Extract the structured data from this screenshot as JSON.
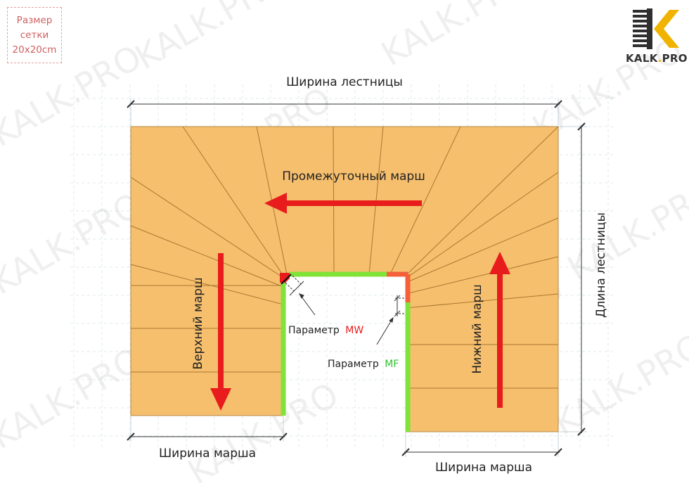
{
  "grid_size": {
    "line1": "Размер",
    "line2": "сетки",
    "line3": "20x20cm"
  },
  "logo": {
    "main": "KALK",
    "dot": ".",
    "suffix": "PRO"
  },
  "watermark": "KALK.PRO",
  "labels": {
    "stair_width": "Ширина лестницы",
    "stair_length": "Длина лестницы",
    "intermediate_flight": "Промежуточный марш",
    "upper_flight": "Верхний марш",
    "lower_flight": "Нижний марш",
    "flight_width_left": "Ширина марша",
    "flight_width_right": "Ширина марша",
    "param_word_mw": "Параметр",
    "param_code_mw": "MW",
    "param_word_mf": "Параметр",
    "param_code_mf": "MF"
  },
  "colors": {
    "steps_fill": "#f6bf6e",
    "step_lines": "#a8772f",
    "arrow": "#e81c1c",
    "edge_green": "#7fe338",
    "edge_red": "#e81c1c",
    "edge_orange": "#f5603a",
    "mw_code": "#e81c1c",
    "mf_code": "#30c030"
  }
}
